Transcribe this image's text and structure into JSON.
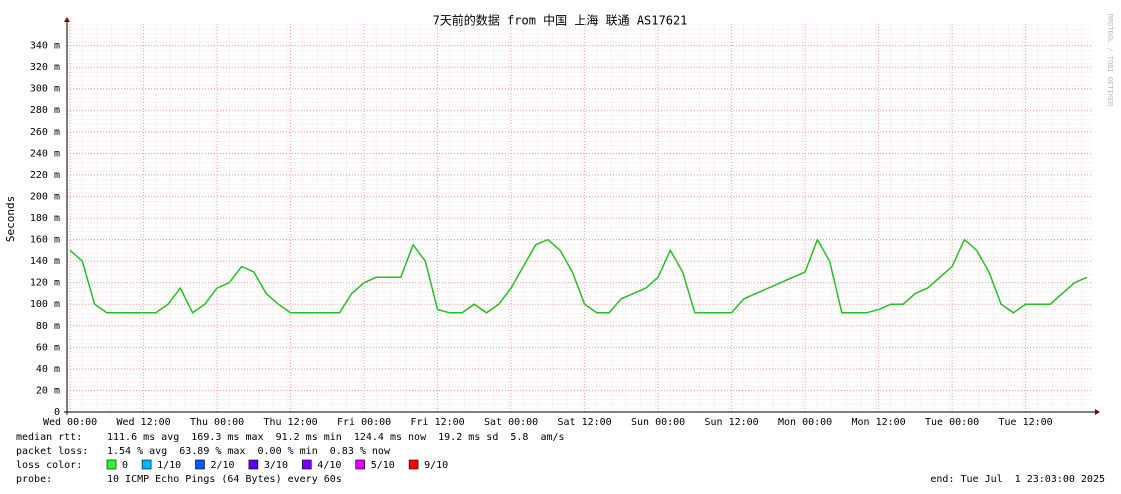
{
  "chart_data": {
    "type": "line",
    "title": "7天前的数据 from 中国 上海 联通 AS17621",
    "y_label": "Seconds",
    "xlim": [
      -0.5,
      167
    ],
    "ylim": [
      0,
      0.36
    ],
    "xticks": [
      {
        "value": 0,
        "label": "Wed 00:00"
      },
      {
        "value": 12,
        "label": "Wed 12:00"
      },
      {
        "value": 24,
        "label": "Thu 00:00"
      },
      {
        "value": 36,
        "label": "Thu 12:00"
      },
      {
        "value": 48,
        "label": "Fri 00:00"
      },
      {
        "value": 60,
        "label": "Fri 12:00"
      },
      {
        "value": 72,
        "label": "Sat 00:00"
      },
      {
        "value": 84,
        "label": "Sat 12:00"
      },
      {
        "value": 96,
        "label": "Sun 00:00"
      },
      {
        "value": 108,
        "label": "Sun 12:00"
      },
      {
        "value": 120,
        "label": "Mon 00:00"
      },
      {
        "value": 132,
        "label": "Mon 12:00"
      },
      {
        "value": 144,
        "label": "Tue 00:00"
      },
      {
        "value": 156,
        "label": "Tue 12:00"
      }
    ],
    "yticks": [
      0,
      {
        "value": 0.02,
        "label": "20 m"
      },
      {
        "value": 0.04,
        "label": "40 m"
      },
      {
        "value": 0.06,
        "label": "60 m"
      },
      {
        "value": 0.08,
        "label": "80 m"
      },
      {
        "value": 0.1,
        "label": "100 m"
      },
      {
        "value": 0.12,
        "label": "120 m"
      },
      {
        "value": 0.14,
        "label": "140 m"
      },
      {
        "value": 0.16,
        "label": "160 m"
      },
      {
        "value": 0.18,
        "label": "180 m"
      },
      {
        "value": 0.2,
        "label": "200 m"
      },
      {
        "value": 0.22,
        "label": "220 m"
      },
      {
        "value": 0.24,
        "label": "240 m"
      },
      {
        "value": 0.26,
        "label": "260 m"
      },
      {
        "value": 0.28,
        "label": "280 m"
      },
      {
        "value": 0.3,
        "label": "300 m"
      },
      {
        "value": 0.32,
        "label": "320 m"
      },
      {
        "value": 0.34,
        "label": "340 m"
      }
    ],
    "grid": true,
    "color": "#22c022",
    "x": [
      0,
      2,
      4,
      6,
      8,
      10,
      12,
      14,
      16,
      18,
      20,
      22,
      24,
      26,
      28,
      30,
      32,
      34,
      36,
      38,
      40,
      42,
      44,
      46,
      48,
      50,
      52,
      54,
      56,
      58,
      60,
      62,
      64,
      66,
      68,
      70,
      72,
      74,
      76,
      78,
      80,
      82,
      84,
      86,
      88,
      90,
      92,
      94,
      96,
      98,
      100,
      102,
      104,
      106,
      108,
      110,
      112,
      114,
      116,
      118,
      120,
      122,
      124,
      126,
      128,
      130,
      132,
      134,
      136,
      138,
      140,
      142,
      144,
      146,
      148,
      150,
      152,
      154,
      156,
      158,
      160,
      162,
      164,
      166
    ],
    "values": [
      0.15,
      0.14,
      0.1,
      0.092,
      0.092,
      0.092,
      0.092,
      0.092,
      0.1,
      0.115,
      0.092,
      0.1,
      0.115,
      0.12,
      0.135,
      0.13,
      0.11,
      0.1,
      0.092,
      0.092,
      0.092,
      0.092,
      0.092,
      0.11,
      0.12,
      0.125,
      0.125,
      0.125,
      0.155,
      0.14,
      0.095,
      0.092,
      0.092,
      0.1,
      0.092,
      0.1,
      0.115,
      0.135,
      0.155,
      0.16,
      0.15,
      0.13,
      0.1,
      0.092,
      0.092,
      0.105,
      0.11,
      0.115,
      0.125,
      0.15,
      0.13,
      0.092,
      0.092,
      0.092,
      0.092,
      0.105,
      0.11,
      0.115,
      0.12,
      0.125,
      0.13,
      0.16,
      0.14,
      0.092,
      0.092,
      0.092,
      0.095,
      0.1,
      0.1,
      0.11,
      0.115,
      0.125,
      0.135,
      0.16,
      0.15,
      0.13,
      0.1,
      0.092,
      0.1,
      0.1,
      0.1,
      0.11,
      0.12,
      0.125
    ]
  },
  "stats": [
    {
      "label": "median rtt:",
      "text": "111.6 ms avg  169.3 ms max  91.2 ms min  124.4 ms now  19.2 ms sd  5.8  am/s"
    },
    {
      "label": "packet loss:",
      "text": "1.54 % avg  63.89 % max  0.00 % min  0.83 % now"
    }
  ],
  "loss_colors": {
    "label": "loss color:",
    "items": [
      {
        "label": "0",
        "color": "#26ff26"
      },
      {
        "label": "1/10",
        "color": "#00b8ff"
      },
      {
        "label": "2/10",
        "color": "#0059ff"
      },
      {
        "label": "3/10",
        "color": "#5e00ff"
      },
      {
        "label": "4/10",
        "color": "#7e00ff"
      },
      {
        "label": "5/10",
        "color": "#dd00ff"
      },
      {
        "label": "9/10",
        "color": "#ff0000"
      }
    ]
  },
  "probe": {
    "label": "probe:",
    "text": "10 ICMP Echo Pings (64 Bytes) every 60s"
  },
  "end": "end: Tue Jul  1 23:03:00 2025",
  "credit": "RRDTOOL / TOBI OETIKER"
}
